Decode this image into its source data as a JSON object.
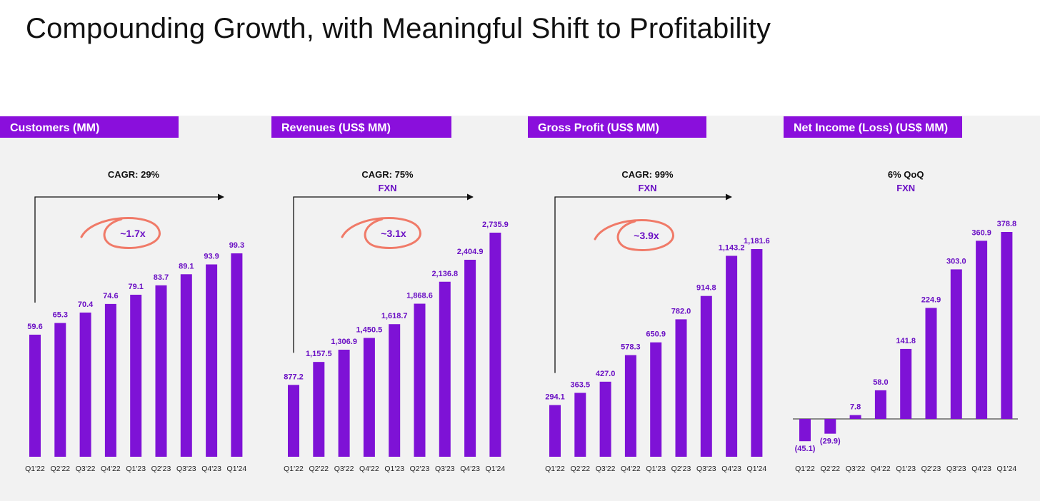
{
  "page": {
    "title": "Compounding Growth, with Meaningful Shift to Profitability"
  },
  "colors": {
    "bar": "#7e12d6",
    "header": "#8a0fdc",
    "label": "#6a0fc4",
    "highlight": "#f07a68",
    "arrow": "#111111",
    "note": "#111111",
    "fxn": "#6a0fc4"
  },
  "chart_data": [
    {
      "type": "bar",
      "title": "Customers (MM)",
      "categories": [
        "Q1'22",
        "Q2'22",
        "Q3'22",
        "Q4'22",
        "Q1'23",
        "Q2'23",
        "Q3'23",
        "Q4'23",
        "Q1'24"
      ],
      "values": [
        59.6,
        65.3,
        70.4,
        74.6,
        79.1,
        83.7,
        89.1,
        93.9,
        99.3
      ],
      "value_labels": [
        "59.6",
        "65.3",
        "70.4",
        "74.6",
        "79.1",
        "83.7",
        "89.1",
        "93.9",
        "99.3"
      ],
      "ylim": [
        0,
        110
      ],
      "annotation": {
        "growth": "CAGR: 29%",
        "currency": "",
        "multiple": "~1.7x"
      }
    },
    {
      "type": "bar",
      "title": "Revenues (US$ MM)",
      "categories": [
        "Q1'22",
        "Q2'22",
        "Q3'22",
        "Q4'22",
        "Q1'23",
        "Q2'23",
        "Q3'23",
        "Q4'23",
        "Q1'24"
      ],
      "values": [
        877.2,
        1157.5,
        1306.9,
        1450.5,
        1618.7,
        1868.6,
        2136.8,
        2404.9,
        2735.9
      ],
      "value_labels": [
        "877.2",
        "1,157.5",
        "1,306.9",
        "1,450.5",
        "1,618.7",
        "1,868.6",
        "2,136.8",
        "2,404.9",
        "2,735.9"
      ],
      "ylim": [
        0,
        3000
      ],
      "annotation": {
        "growth": "CAGR: 75%",
        "currency": "FXN",
        "multiple": "~3.1x"
      }
    },
    {
      "type": "bar",
      "title": "Gross Profit (US$ MM)",
      "categories": [
        "Q1'22",
        "Q2'22",
        "Q3'22",
        "Q4'22",
        "Q1'23",
        "Q2'23",
        "Q3'23",
        "Q4'23",
        "Q1'24"
      ],
      "values": [
        294.1,
        363.5,
        427.0,
        578.3,
        650.9,
        782.0,
        914.8,
        1143.2,
        1181.6
      ],
      "value_labels": [
        "294.1",
        "363.5",
        "427.0",
        "578.3",
        "650.9",
        "782.0",
        "914.8",
        "1,143.2",
        "1,181.6"
      ],
      "ylim": [
        0,
        1330
      ],
      "annotation": {
        "growth": "CAGR: 99%",
        "currency": "FXN",
        "multiple": "~3.9x"
      }
    },
    {
      "type": "bar",
      "title": "Net Income (Loss) (US$ MM)",
      "categories": [
        "Q1'22",
        "Q2'22",
        "Q3'22",
        "Q4'22",
        "Q1'23",
        "Q2'23",
        "Q3'23",
        "Q4'23",
        "Q1'24"
      ],
      "values": [
        -45.1,
        -29.9,
        7.8,
        58.0,
        141.8,
        224.9,
        303.0,
        360.9,
        378.8
      ],
      "value_labels": [
        "(45.1)",
        "(29.9)",
        "7.8",
        "58.0",
        "141.8",
        "224.9",
        "303.0",
        "360.9",
        "378.8"
      ],
      "ylim": [
        -60,
        420
      ],
      "annotation": {
        "growth": "6% QoQ",
        "currency": "FXN",
        "multiple": ""
      }
    }
  ]
}
